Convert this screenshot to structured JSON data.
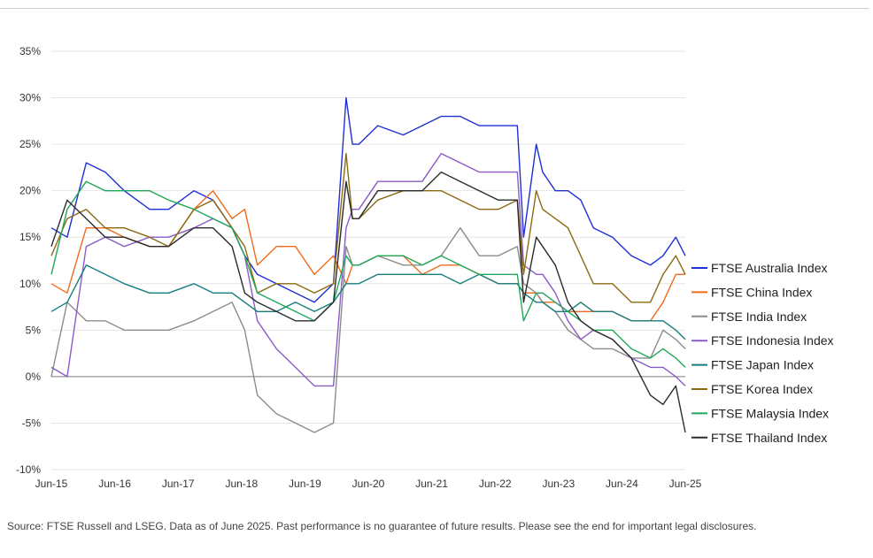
{
  "chart_data": {
    "type": "line",
    "title": "",
    "xlabel": "",
    "ylabel": "",
    "ylim": [
      -10,
      35
    ],
    "y_ticks": [
      -10,
      -5,
      0,
      5,
      10,
      15,
      20,
      25,
      30,
      35
    ],
    "y_tick_labels": [
      "-10%",
      "-5%",
      "0%",
      "5%",
      "10%",
      "15%",
      "20%",
      "25%",
      "30%",
      "35%"
    ],
    "xlim": [
      2015.45,
      2025.45
    ],
    "x_ticks": [
      2015.45,
      2016.45,
      2017.45,
      2018.45,
      2019.45,
      2020.45,
      2021.45,
      2022.45,
      2023.45,
      2024.45,
      2025.45
    ],
    "x_tick_labels": [
      "Jun-15",
      "Jun-16",
      "Jun-17",
      "Jun-18",
      "Jun-19",
      "Jun-20",
      "Jun-21",
      "Jun-22",
      "Jun-23",
      "Jun-24",
      "Jun-25"
    ],
    "grid": "horizontal",
    "legend": "right",
    "x": [
      2015.45,
      2015.7,
      2016.0,
      2016.3,
      2016.6,
      2017.0,
      2017.3,
      2017.7,
      2018.0,
      2018.3,
      2018.5,
      2018.7,
      2019.0,
      2019.3,
      2019.6,
      2019.9,
      2020.1,
      2020.2,
      2020.3,
      2020.6,
      2021.0,
      2021.3,
      2021.6,
      2021.9,
      2022.2,
      2022.5,
      2022.8,
      2022.9,
      2023.1,
      2023.2,
      2023.4,
      2023.6,
      2023.8,
      2024.0,
      2024.3,
      2024.6,
      2024.9,
      2025.1,
      2025.3,
      2025.45
    ],
    "series": [
      {
        "name": "FTSE Australia Index",
        "color": "#1f2fd6",
        "values": [
          16,
          15,
          23,
          22,
          20,
          18,
          18,
          20,
          19,
          16,
          13,
          11,
          10,
          9,
          8,
          10,
          30,
          25,
          25,
          27,
          26,
          27,
          28,
          28,
          27,
          27,
          27,
          15,
          25,
          22,
          20,
          20,
          19,
          16,
          15,
          13,
          12,
          13,
          15,
          13
        ]
      },
      {
        "name": "FTSE China Index",
        "color": "#f26b1d",
        "values": [
          10,
          9,
          16,
          16,
          15,
          14,
          14,
          18,
          20,
          17,
          18,
          12,
          14,
          14,
          11,
          13,
          10,
          12,
          12,
          13,
          13,
          11,
          12,
          12,
          11,
          10,
          10,
          9,
          9,
          8,
          8,
          7,
          7,
          7,
          7,
          6,
          6,
          8,
          11,
          11
        ]
      },
      {
        "name": "FTSE India Index",
        "color": "#8c8c8c",
        "values": [
          0,
          8,
          6,
          6,
          5,
          5,
          5,
          6,
          7,
          8,
          5,
          -2,
          -4,
          -5,
          -6,
          -5,
          14,
          12,
          12,
          13,
          12,
          12,
          13,
          16,
          13,
          13,
          14,
          10,
          9,
          8,
          7,
          5,
          4,
          3,
          3,
          2,
          2,
          5,
          4,
          3
        ]
      },
      {
        "name": "FTSE Indonesia Index",
        "color": "#8a5cc6",
        "values": [
          1,
          0,
          14,
          15,
          14,
          15,
          15,
          16,
          17,
          16,
          13,
          6,
          3,
          1,
          -1,
          -1,
          16,
          18,
          18,
          21,
          21,
          21,
          24,
          23,
          22,
          22,
          22,
          12,
          11,
          11,
          9,
          6,
          4,
          5,
          4,
          2,
          1,
          1,
          0,
          -1
        ]
      },
      {
        "name": "FTSE Japan Index",
        "color": "#177d7c",
        "values": [
          7,
          8,
          12,
          11,
          10,
          9,
          9,
          10,
          9,
          9,
          8,
          7,
          7,
          8,
          7,
          8,
          10,
          10,
          10,
          11,
          11,
          11,
          11,
          10,
          11,
          10,
          10,
          9,
          8,
          8,
          7,
          7,
          8,
          7,
          7,
          6,
          6,
          6,
          5,
          4
        ]
      },
      {
        "name": "FTSE Korea Index",
        "color": "#8b6a12",
        "values": [
          13,
          17,
          18,
          16,
          16,
          15,
          14,
          18,
          19,
          16,
          14,
          9,
          10,
          10,
          9,
          10,
          24,
          17,
          17,
          19,
          20,
          20,
          20,
          19,
          18,
          18,
          19,
          11,
          20,
          18,
          17,
          16,
          13,
          10,
          10,
          8,
          8,
          11,
          13,
          11
        ]
      },
      {
        "name": "FTSE Malaysia Index",
        "color": "#1fa85a",
        "values": [
          11,
          18,
          21,
          20,
          20,
          20,
          19,
          18,
          17,
          16,
          13,
          9,
          8,
          7,
          6,
          8,
          13,
          12,
          12,
          13,
          13,
          12,
          13,
          12,
          11,
          11,
          11,
          6,
          9,
          9,
          8,
          7,
          6,
          5,
          5,
          3,
          2,
          3,
          2,
          1
        ]
      },
      {
        "name": "FTSE Thailand Index",
        "color": "#2b2b2b",
        "values": [
          14,
          19,
          17,
          15,
          15,
          14,
          14,
          16,
          16,
          14,
          9,
          8,
          7,
          6,
          6,
          8,
          21,
          17,
          17,
          20,
          20,
          20,
          22,
          21,
          20,
          19,
          19,
          8,
          15,
          14,
          12,
          8,
          6,
          5,
          4,
          2,
          -2,
          -3,
          -1,
          -6
        ]
      }
    ]
  },
  "source_note": "Source: FTSE Russell and LSEG. Data as of June 2025. Past performance is no guarantee of future results. Please see the end for important legal disclosures."
}
